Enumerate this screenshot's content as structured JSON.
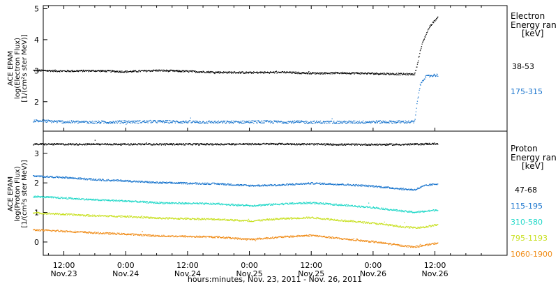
{
  "colors": {
    "black": "#000000",
    "blue": "#1874cd",
    "cyan": "#20d8c8",
    "yellow": "#c8e020",
    "orange": "#f08c18"
  },
  "x_axis": {
    "title": "hours:minutes, Nov. 23, 2011 - Nov. 26, 2011",
    "range_hours": [
      -4,
      86
    ],
    "ticks": [
      {
        "hour": 0,
        "time": "12:00",
        "date": "Nov.23"
      },
      {
        "hour": 12,
        "time": "0:00",
        "date": "Nov.24"
      },
      {
        "hour": 24,
        "time": "12:00",
        "date": "Nov.24"
      },
      {
        "hour": 36,
        "time": "0:00",
        "date": "Nov.25"
      },
      {
        "hour": 48,
        "time": "12:00",
        "date": "Nov.25"
      },
      {
        "hour": 60,
        "time": "0:00",
        "date": "Nov.26"
      },
      {
        "hour": 72,
        "time": "12:00",
        "date": "Nov.26"
      }
    ]
  },
  "chart_data": [
    {
      "type": "scatter",
      "panel": "electron",
      "ylabel_lines": [
        "ACE EPAM",
        "log(Electron Flux)",
        "[1/(cm²s ster MeV)]"
      ],
      "ylim": [
        1.05,
        5.1
      ],
      "yticks": [
        2,
        3,
        4,
        5
      ],
      "legend_title": [
        "Electron",
        "Energy ran"
      ],
      "legend_unit": "[keV]",
      "series": [
        {
          "name": "38-53",
          "color": "#000000",
          "points": [
            [
              -6,
              3.02
            ],
            [
              0,
              3.0
            ],
            [
              6,
              3.01
            ],
            [
              12,
              2.98
            ],
            [
              18,
              3.02
            ],
            [
              24,
              2.99
            ],
            [
              30,
              2.96
            ],
            [
              36,
              2.95
            ],
            [
              42,
              2.96
            ],
            [
              48,
              2.93
            ],
            [
              54,
              2.94
            ],
            [
              60,
              2.92
            ],
            [
              66,
              2.9
            ],
            [
              68,
              2.9
            ],
            [
              68.5,
              3.2
            ],
            [
              69,
              3.6
            ],
            [
              69.5,
              3.9
            ],
            [
              70,
              4.1
            ],
            [
              70.5,
              4.3
            ],
            [
              71,
              4.45
            ],
            [
              71.5,
              4.55
            ],
            [
              72,
              4.65
            ],
            [
              72.5,
              4.72
            ]
          ]
        },
        {
          "name": "175-315",
          "color": "#1874cd",
          "points": [
            [
              -6,
              1.4
            ],
            [
              0,
              1.36
            ],
            [
              6,
              1.35
            ],
            [
              12,
              1.36
            ],
            [
              18,
              1.37
            ],
            [
              24,
              1.36
            ],
            [
              30,
              1.35
            ],
            [
              36,
              1.36
            ],
            [
              42,
              1.36
            ],
            [
              48,
              1.35
            ],
            [
              54,
              1.35
            ],
            [
              60,
              1.36
            ],
            [
              66,
              1.36
            ],
            [
              68,
              1.36
            ],
            [
              68.5,
              2.0
            ],
            [
              69,
              2.5
            ],
            [
              69.5,
              2.7
            ],
            [
              70,
              2.8
            ],
            [
              71,
              2.85
            ],
            [
              72,
              2.87
            ],
            [
              72.5,
              2.87
            ]
          ]
        }
      ]
    },
    {
      "type": "scatter",
      "panel": "proton",
      "ylabel_lines": [
        "ACE EPAM",
        "log(Proton Flux)",
        "[1/(cm²s ster MeV)]"
      ],
      "ylim": [
        -0.45,
        3.75
      ],
      "yticks": [
        0,
        1,
        2,
        3
      ],
      "legend_title": [
        "Proton",
        "Energy ran"
      ],
      "legend_unit": "[keV]",
      "series": [
        {
          "name": "47-68",
          "color": "#000000",
          "points": [
            [
              -6,
              3.32
            ],
            [
              6,
              3.32
            ],
            [
              18,
              3.32
            ],
            [
              30,
              3.32
            ],
            [
              42,
              3.33
            ],
            [
              54,
              3.31
            ],
            [
              66,
              3.31
            ],
            [
              72.5,
              3.34
            ]
          ]
        },
        {
          "name": "115-195",
          "color": "#1874cd",
          "points": [
            [
              -6,
              2.24
            ],
            [
              0,
              2.2
            ],
            [
              6,
              2.12
            ],
            [
              12,
              2.08
            ],
            [
              18,
              2.02
            ],
            [
              24,
              2.0
            ],
            [
              30,
              1.98
            ],
            [
              36,
              1.92
            ],
            [
              42,
              1.94
            ],
            [
              48,
              2.0
            ],
            [
              54,
              1.96
            ],
            [
              60,
              1.9
            ],
            [
              66,
              1.8
            ],
            [
              68,
              1.78
            ],
            [
              70,
              1.92
            ],
            [
              72.5,
              1.98
            ]
          ]
        },
        {
          "name": "310-580",
          "color": "#20d8c8",
          "points": [
            [
              -6,
              1.55
            ],
            [
              0,
              1.5
            ],
            [
              6,
              1.44
            ],
            [
              12,
              1.4
            ],
            [
              18,
              1.34
            ],
            [
              24,
              1.32
            ],
            [
              30,
              1.3
            ],
            [
              36,
              1.24
            ],
            [
              42,
              1.3
            ],
            [
              48,
              1.34
            ],
            [
              54,
              1.26
            ],
            [
              60,
              1.18
            ],
            [
              66,
              1.05
            ],
            [
              68,
              1.02
            ],
            [
              70,
              1.05
            ],
            [
              72.5,
              1.1
            ]
          ]
        },
        {
          "name": "795-1193",
          "color": "#c8e020",
          "points": [
            [
              -6,
              1.0
            ],
            [
              0,
              0.95
            ],
            [
              6,
              0.9
            ],
            [
              12,
              0.88
            ],
            [
              18,
              0.82
            ],
            [
              24,
              0.8
            ],
            [
              30,
              0.78
            ],
            [
              36,
              0.72
            ],
            [
              42,
              0.8
            ],
            [
              48,
              0.84
            ],
            [
              54,
              0.74
            ],
            [
              60,
              0.65
            ],
            [
              66,
              0.52
            ],
            [
              68,
              0.5
            ],
            [
              70,
              0.52
            ],
            [
              72.5,
              0.6
            ]
          ]
        },
        {
          "name": "1060-1900",
          "color": "#f08c18",
          "points": [
            [
              -6,
              0.42
            ],
            [
              0,
              0.38
            ],
            [
              6,
              0.32
            ],
            [
              12,
              0.28
            ],
            [
              18,
              0.22
            ],
            [
              24,
              0.2
            ],
            [
              30,
              0.18
            ],
            [
              36,
              0.1
            ],
            [
              42,
              0.18
            ],
            [
              48,
              0.24
            ],
            [
              54,
              0.12
            ],
            [
              60,
              0.02
            ],
            [
              66,
              -0.12
            ],
            [
              68,
              -0.15
            ],
            [
              70,
              -0.1
            ],
            [
              72.5,
              -0.02
            ]
          ]
        }
      ]
    }
  ]
}
